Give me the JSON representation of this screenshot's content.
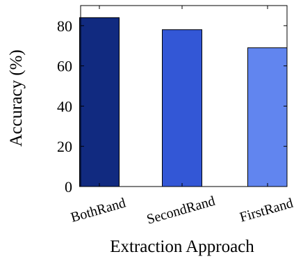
{
  "chart_data": {
    "type": "bar",
    "categories": [
      "BothRand",
      "SecondRand",
      "FirstRand"
    ],
    "values": [
      84,
      78,
      69
    ],
    "bar_colors": [
      "#112a80",
      "#3357d6",
      "#6185ef"
    ],
    "xlabel": "Extraction Approach",
    "ylabel": "Accuracy (%)",
    "ylim": [
      0,
      90
    ],
    "yticks": [
      0,
      20,
      40,
      60,
      80
    ],
    "grid": false,
    "legend": "none"
  }
}
